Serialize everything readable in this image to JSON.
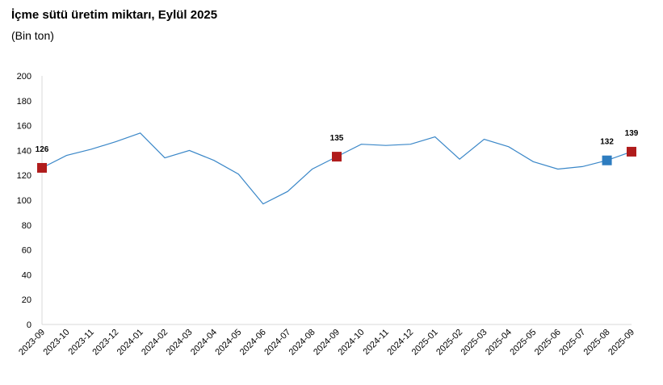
{
  "chart_data": {
    "type": "line",
    "title": "İçme sütü üretim miktarı, Eylül 2025",
    "subtitle": "(Bin ton)",
    "xlabel": "",
    "ylabel": "",
    "ylim": [
      0,
      200
    ],
    "yticks": [
      0,
      20,
      40,
      60,
      80,
      100,
      120,
      140,
      160,
      180,
      200
    ],
    "grid": false,
    "legend": "none",
    "line_color": "#3a87c8",
    "categories": [
      "2023-09",
      "2023-10",
      "2023-11",
      "2023-12",
      "2024-01",
      "2024-02",
      "2024-03",
      "2024-04",
      "2024-05",
      "2024-06",
      "2024-07",
      "2024-08",
      "2024-09",
      "2024-10",
      "2024-11",
      "2024-12",
      "2025-01",
      "2025-02",
      "2025-03",
      "2025-04",
      "2025-05",
      "2025-06",
      "2025-07",
      "2025-08",
      "2025-09"
    ],
    "series": [
      {
        "values": [
          126,
          136,
          141,
          147,
          154,
          134,
          140,
          132,
          121,
          97,
          107,
          125,
          135,
          145,
          144,
          145,
          151,
          133,
          149,
          143,
          131,
          125,
          127,
          132,
          139
        ]
      }
    ],
    "highlighted_points": [
      {
        "category": "2023-09",
        "label": "126",
        "color": "#b01c1c"
      },
      {
        "category": "2024-09",
        "label": "135",
        "color": "#b01c1c"
      },
      {
        "category": "2025-08",
        "label": "132",
        "color": "#2e7dc0"
      },
      {
        "category": "2025-09",
        "label": "139",
        "color": "#b01c1c"
      }
    ]
  }
}
